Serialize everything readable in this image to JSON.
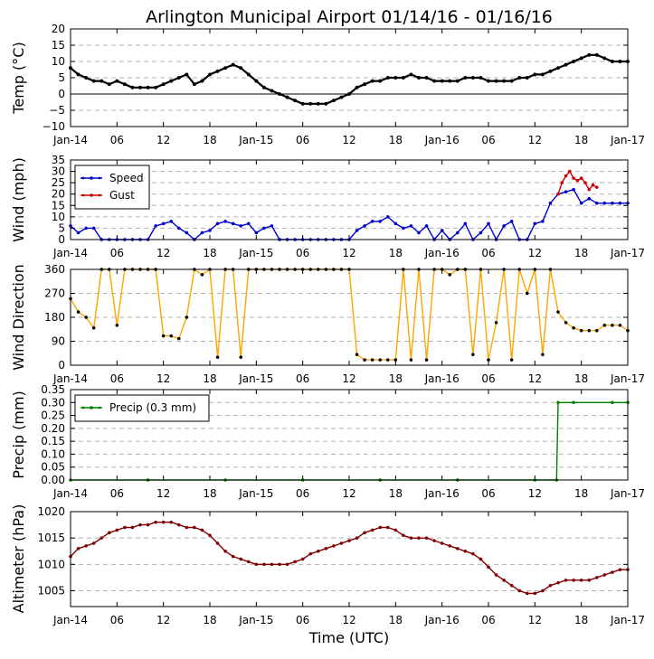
{
  "figure": {
    "title": "Arlington Municipal Airport 01/14/16 - 01/16/16",
    "xlabel": "Time (UTC)"
  },
  "x_ticks": [
    "Jan-14",
    "06",
    "12",
    "18",
    "Jan-15",
    "06",
    "12",
    "18",
    "Jan-16",
    "06",
    "12",
    "18",
    "Jan-17"
  ],
  "colors": {
    "temp": "#000000",
    "speed": "#0000cc",
    "gust": "#cc0000",
    "direction_line": "#ffa500",
    "direction_marker": "#000000",
    "precip": "#008000",
    "altimeter": "#800000",
    "grid": "#b0b0b0"
  },
  "chart_data": [
    {
      "type": "line",
      "name": "temp",
      "ylabel": "Temp (°C)",
      "ylim": [
        -10,
        20
      ],
      "yticks": [
        -10,
        -5,
        0,
        5,
        10,
        15,
        20
      ],
      "xlim_hours": [
        0,
        72
      ],
      "zero_line": true,
      "series": [
        {
          "name": "Temp",
          "color_key": "temp",
          "markers": true,
          "x_hours": [
            0,
            1,
            2,
            3,
            4,
            5,
            6,
            7,
            8,
            9,
            10,
            11,
            12,
            13,
            14,
            15,
            16,
            17,
            18,
            19,
            20,
            21,
            22,
            23,
            24,
            25,
            26,
            27,
            28,
            29,
            30,
            31,
            32,
            33,
            34,
            35,
            36,
            37,
            38,
            39,
            40,
            41,
            42,
            43,
            44,
            45,
            46,
            47,
            48,
            49,
            50,
            51,
            52,
            53,
            54,
            55,
            56,
            57,
            58,
            59,
            60,
            61,
            62,
            63,
            64,
            65,
            66,
            67,
            68,
            69,
            70,
            71,
            72
          ],
          "values": [
            8,
            6,
            5,
            4,
            4,
            3,
            4,
            3,
            2,
            2,
            2,
            2,
            3,
            4,
            5,
            6,
            3,
            4,
            6,
            7,
            8,
            9,
            8,
            6,
            4,
            2,
            1,
            0,
            -1,
            -2,
            -3,
            -3,
            -3,
            -3,
            -2,
            -1,
            0,
            2,
            3,
            4,
            4,
            5,
            5,
            5,
            6,
            5,
            5,
            4,
            4,
            4,
            4,
            5,
            5,
            5,
            4,
            4,
            4,
            4,
            5,
            5,
            6,
            6,
            7,
            8,
            9,
            10,
            11,
            12,
            12,
            11,
            10,
            10,
            10
          ]
        }
      ]
    },
    {
      "type": "line",
      "name": "wind",
      "ylabel": "Wind (mph)",
      "ylim": [
        0,
        35
      ],
      "yticks": [
        0,
        5,
        10,
        15,
        20,
        25,
        30,
        35
      ],
      "xlim_hours": [
        0,
        72
      ],
      "legend": "top-left",
      "series": [
        {
          "name": "Speed",
          "color_key": "speed",
          "markers": true,
          "x_hours": [
            0,
            1,
            2,
            3,
            4,
            5,
            6,
            7,
            8,
            9,
            10,
            11,
            12,
            13,
            14,
            15,
            16,
            17,
            18,
            19,
            20,
            21,
            22,
            23,
            24,
            25,
            26,
            27,
            28,
            29,
            30,
            31,
            32,
            33,
            34,
            35,
            36,
            37,
            38,
            39,
            40,
            41,
            42,
            43,
            44,
            45,
            46,
            47,
            48,
            49,
            50,
            51,
            52,
            53,
            54,
            55,
            56,
            57,
            58,
            59,
            60,
            61,
            62,
            63,
            64,
            65,
            66,
            67,
            68,
            69,
            70,
            71,
            72
          ],
          "values": [
            6,
            3,
            5,
            5,
            0,
            0,
            0,
            0,
            0,
            0,
            0,
            6,
            7,
            8,
            5,
            3,
            0,
            3,
            4,
            7,
            8,
            7,
            6,
            7,
            3,
            5,
            6,
            0,
            0,
            0,
            0,
            0,
            0,
            0,
            0,
            0,
            0,
            4,
            6,
            8,
            8,
            10,
            7,
            5,
            6,
            3,
            6,
            0,
            4,
            0,
            3,
            7,
            0,
            3,
            7,
            0,
            6,
            8,
            0,
            0,
            7,
            8,
            16,
            20,
            21,
            22,
            16,
            18,
            16,
            16,
            16,
            16,
            16
          ]
        },
        {
          "name": "Gust",
          "color_key": "gust",
          "markers": true,
          "x_hours": [
            63,
            63.5,
            64,
            64.5,
            65,
            65.5,
            66,
            66.5,
            67,
            67.5,
            68
          ],
          "values": [
            20,
            25,
            28,
            30,
            27,
            26,
            27,
            25,
            22,
            24,
            23
          ]
        }
      ]
    },
    {
      "type": "line",
      "name": "wind_direction",
      "ylabel": "Wind Direction",
      "ylim": [
        0,
        360
      ],
      "yticks": [
        0,
        90,
        180,
        270,
        360
      ],
      "xlim_hours": [
        0,
        72
      ],
      "series": [
        {
          "name": "Direction",
          "color_key": "direction_line",
          "markers": true,
          "x_hours": [
            0,
            1,
            2,
            3,
            4,
            5,
            6,
            7,
            8,
            9,
            10,
            11,
            12,
            13,
            14,
            15,
            16,
            17,
            18,
            19,
            20,
            21,
            22,
            23,
            24,
            25,
            26,
            27,
            28,
            29,
            30,
            31,
            32,
            33,
            34,
            35,
            36,
            37,
            38,
            39,
            40,
            41,
            42,
            43,
            44,
            45,
            46,
            47,
            48,
            49,
            50,
            51,
            52,
            53,
            54,
            55,
            56,
            57,
            58,
            59,
            60,
            61,
            62,
            63,
            64,
            65,
            66,
            67,
            68,
            69,
            70,
            71,
            72
          ],
          "values": [
            250,
            200,
            180,
            140,
            360,
            360,
            150,
            360,
            360,
            360,
            360,
            360,
            110,
            110,
            100,
            180,
            360,
            340,
            360,
            30,
            360,
            360,
            30,
            360,
            360,
            360,
            360,
            360,
            360,
            360,
            360,
            360,
            360,
            360,
            360,
            360,
            360,
            40,
            20,
            20,
            20,
            20,
            20,
            360,
            20,
            360,
            20,
            360,
            360,
            340,
            360,
            360,
            40,
            360,
            20,
            160,
            360,
            20,
            360,
            270,
            360,
            40,
            360,
            200,
            160,
            140,
            130,
            130,
            130,
            150,
            150,
            150,
            130
          ]
        }
      ]
    },
    {
      "type": "line",
      "name": "precip",
      "ylabel": "Precip (mm)",
      "ylim": [
        0,
        0.35
      ],
      "yticks": [
        0.0,
        0.05,
        0.1,
        0.15,
        0.2,
        0.25,
        0.3,
        0.35
      ],
      "ytick_labels": [
        "0.00",
        "0.05",
        "0.10",
        "0.15",
        "0.20",
        "0.25",
        "0.30",
        "0.35"
      ],
      "xlim_hours": [
        0,
        72
      ],
      "legend": "top-left",
      "series": [
        {
          "name": "Precip (0.3 mm)",
          "color_key": "precip",
          "markers": true,
          "x_hours": [
            0,
            10,
            20,
            30,
            40,
            50,
            60,
            62.8,
            63,
            65,
            70,
            72
          ],
          "values": [
            0,
            0,
            0,
            0,
            0,
            0,
            0,
            0,
            0.3,
            0.3,
            0.3,
            0.3
          ]
        }
      ]
    },
    {
      "type": "line",
      "name": "altimeter",
      "ylabel": "Altimeter (hPa)",
      "ylim": [
        1002,
        1020
      ],
      "yticks": [
        1005,
        1010,
        1015,
        1020
      ],
      "xlim_hours": [
        0,
        72
      ],
      "series": [
        {
          "name": "Altimeter",
          "color_key": "altimeter",
          "markers": true,
          "x_hours": [
            0,
            1,
            2,
            3,
            4,
            5,
            6,
            7,
            8,
            9,
            10,
            11,
            12,
            13,
            14,
            15,
            16,
            17,
            18,
            19,
            20,
            21,
            22,
            23,
            24,
            25,
            26,
            27,
            28,
            29,
            30,
            31,
            32,
            33,
            34,
            35,
            36,
            37,
            38,
            39,
            40,
            41,
            42,
            43,
            44,
            45,
            46,
            47,
            48,
            49,
            50,
            51,
            52,
            53,
            54,
            55,
            56,
            57,
            58,
            59,
            60,
            61,
            62,
            63,
            64,
            65,
            66,
            67,
            68,
            69,
            70,
            71,
            72
          ],
          "values": [
            1011.5,
            1013,
            1013.5,
            1014,
            1015,
            1016,
            1016.5,
            1017,
            1017,
            1017.5,
            1017.5,
            1018,
            1018,
            1018,
            1017.5,
            1017,
            1017,
            1016.5,
            1015.5,
            1014,
            1012.5,
            1011.5,
            1011,
            1010.5,
            1010,
            1010,
            1010,
            1010,
            1010,
            1010.5,
            1011,
            1012,
            1012.5,
            1013,
            1013.5,
            1014,
            1014.5,
            1015,
            1016,
            1016.5,
            1017,
            1017,
            1016.5,
            1015.5,
            1015,
            1015,
            1015,
            1014.5,
            1014,
            1013.5,
            1013,
            1012.5,
            1012,
            1011,
            1009.5,
            1008,
            1007,
            1006,
            1005,
            1004.5,
            1004.5,
            1005,
            1006,
            1006.5,
            1007,
            1007,
            1007,
            1007,
            1007.5,
            1008,
            1008.5,
            1009,
            1009
          ]
        }
      ]
    }
  ]
}
